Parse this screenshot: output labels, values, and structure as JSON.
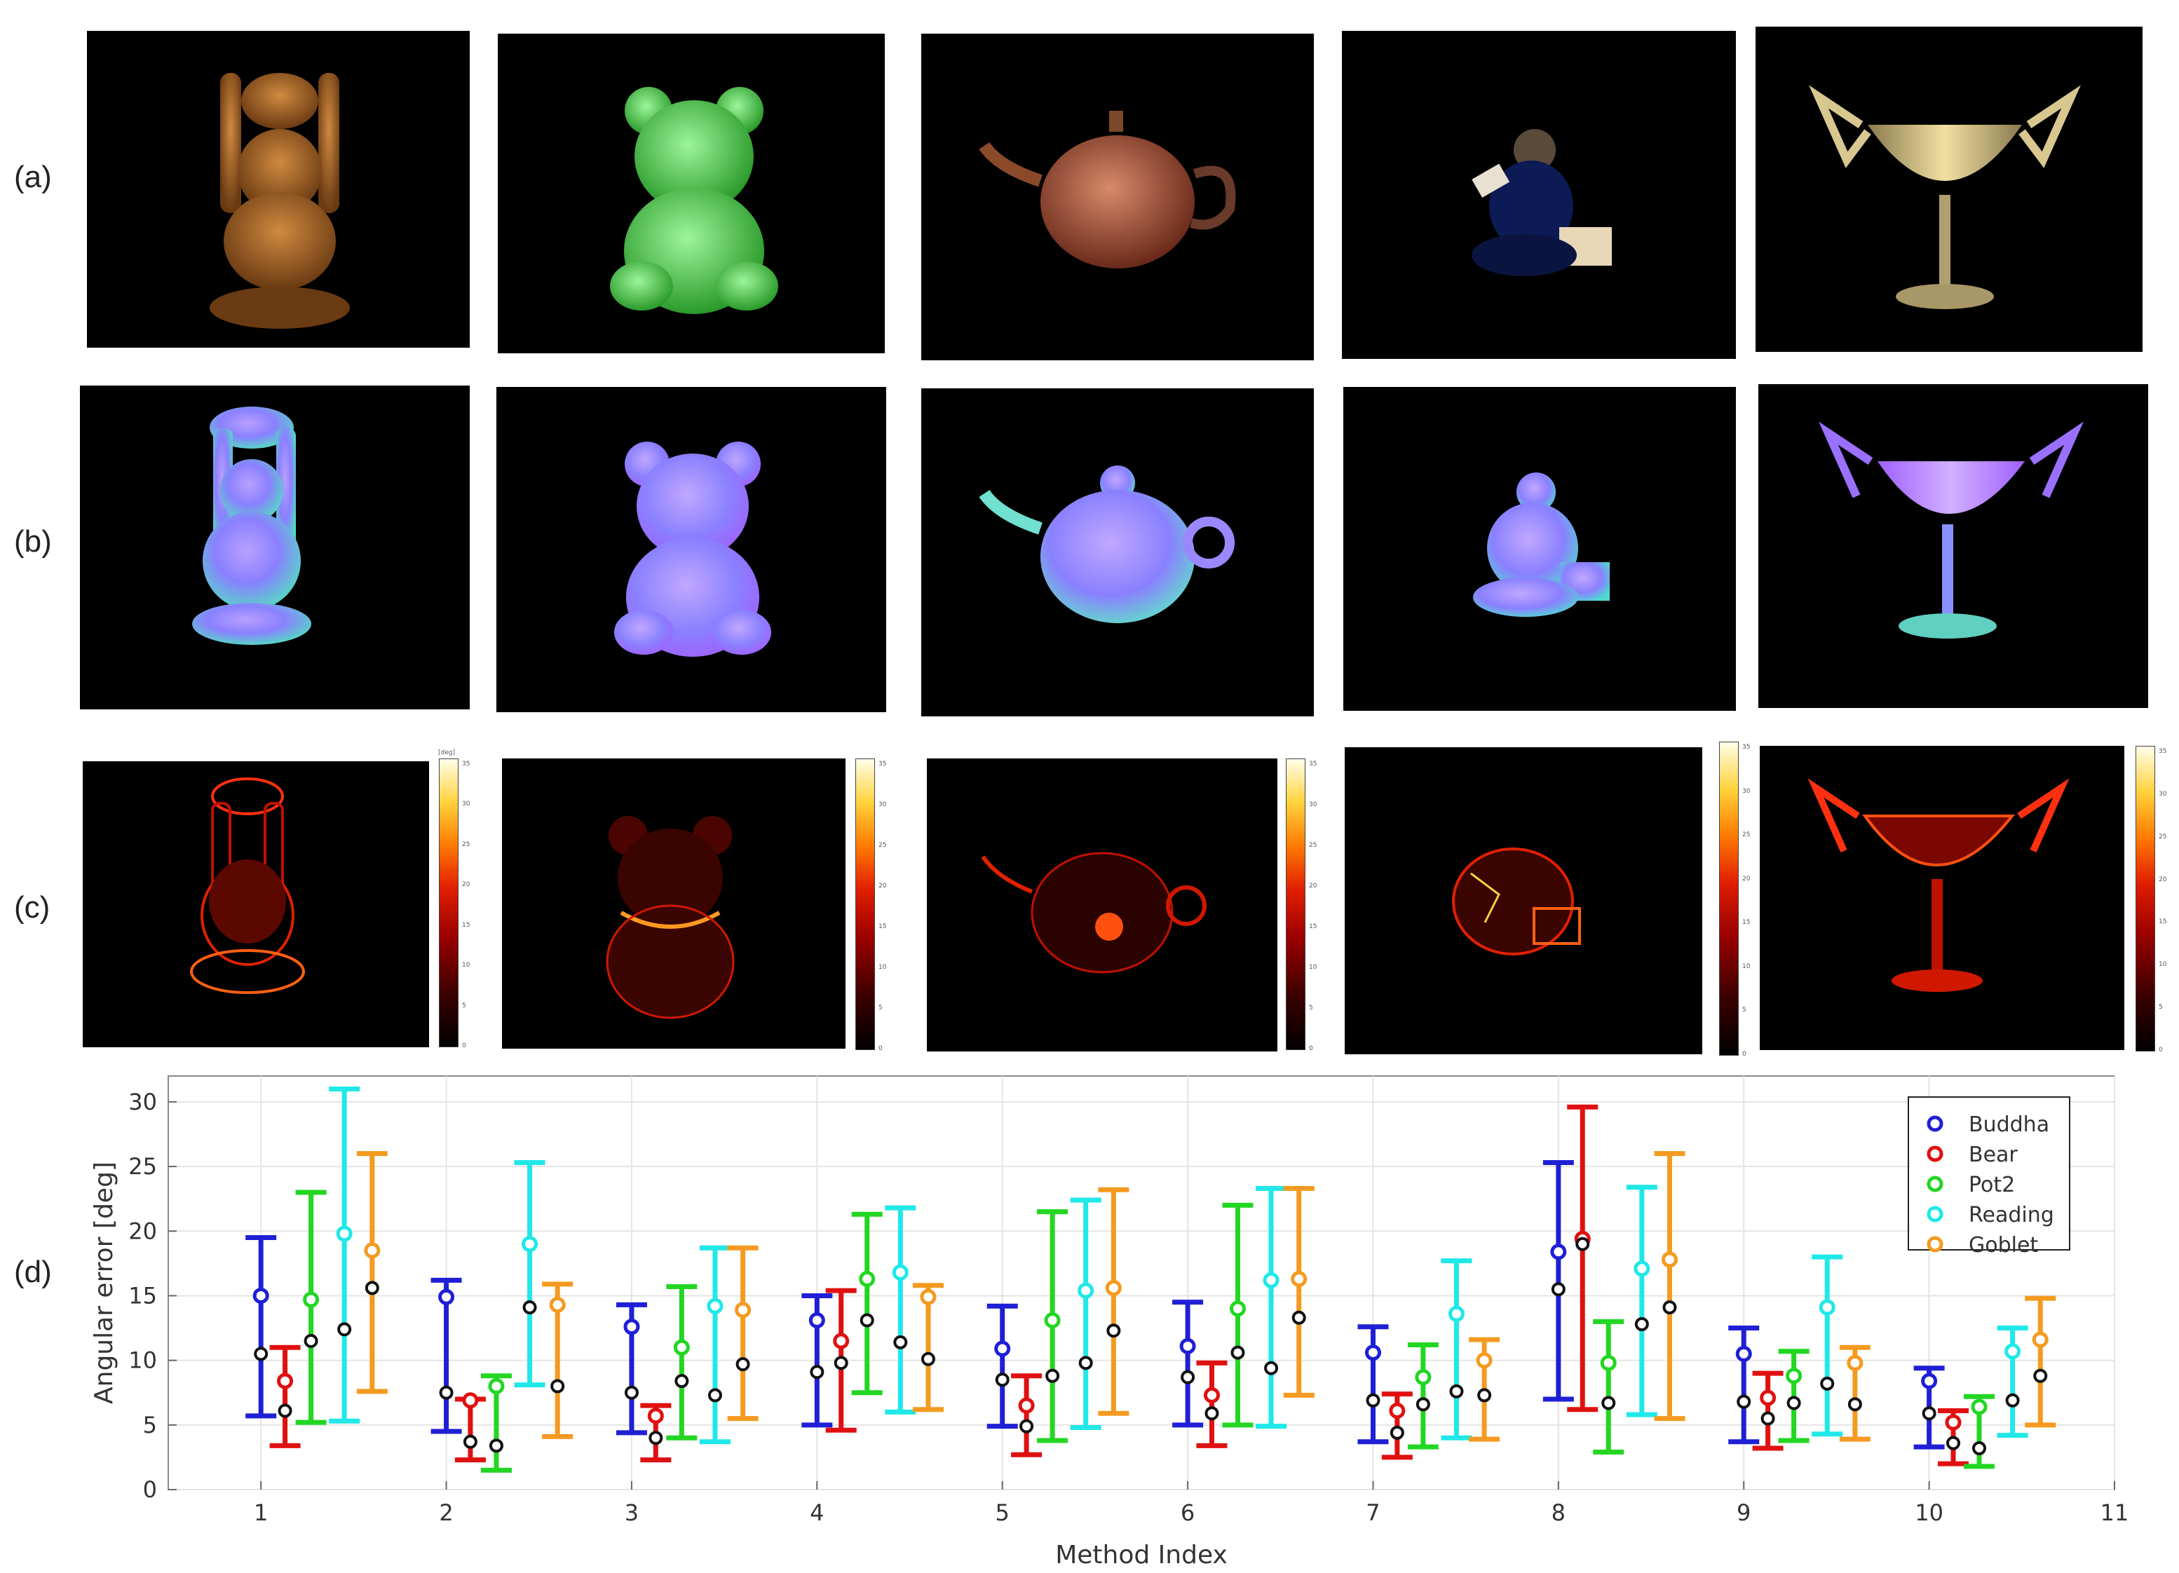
{
  "row_labels": [
    "(a)",
    "(b)",
    "(c)",
    "(d)"
  ],
  "colorbar": {
    "unit": "[deg]",
    "ticks": [
      "0",
      "5",
      "10",
      "15",
      "20",
      "25",
      "30",
      "35"
    ]
  },
  "objects": [
    "Buddha",
    "Bear",
    "Pot2",
    "Reading",
    "Goblet"
  ],
  "chart_data": {
    "type": "errorbar",
    "xlabel": "Method Index",
    "ylabel": "Angular error [deg]",
    "xlim": [
      0.5,
      11
    ],
    "ylim": [
      0,
      32
    ],
    "xticks": [
      1,
      2,
      3,
      4,
      5,
      6,
      7,
      8,
      9,
      10,
      11
    ],
    "yticks": [
      0,
      5,
      10,
      15,
      20,
      25,
      30
    ],
    "grid": true,
    "legend_position": "top-right",
    "categories": [
      1,
      2,
      3,
      4,
      5,
      6,
      7,
      8,
      9,
      10
    ],
    "series": [
      {
        "name": "Buddha",
        "color": "#1f1fd6",
        "mean": [
          15.0,
          14.9,
          12.6,
          13.1,
          10.9,
          11.1,
          10.6,
          18.4,
          10.5,
          8.4
        ],
        "median": [
          10.5,
          7.5,
          7.5,
          9.1,
          8.5,
          8.7,
          6.9,
          15.5,
          6.8,
          5.9
        ],
        "low": [
          5.7,
          4.5,
          4.4,
          5.0,
          4.9,
          5.0,
          3.7,
          7.0,
          3.7,
          3.3
        ],
        "high": [
          19.5,
          16.2,
          14.3,
          15.0,
          14.2,
          14.5,
          12.6,
          25.3,
          12.5,
          9.4
        ]
      },
      {
        "name": "Bear",
        "color": "#e01010",
        "mean": [
          8.4,
          6.9,
          5.7,
          11.5,
          6.5,
          7.3,
          6.1,
          19.4,
          7.1,
          5.2
        ],
        "median": [
          6.1,
          3.7,
          4.0,
          9.8,
          4.9,
          5.9,
          4.4,
          19.0,
          5.5,
          3.6
        ],
        "low": [
          3.4,
          2.3,
          2.3,
          4.6,
          2.7,
          3.4,
          2.5,
          6.2,
          3.2,
          2.0
        ],
        "high": [
          11.0,
          7.0,
          6.5,
          15.4,
          8.8,
          9.8,
          7.4,
          29.6,
          9.0,
          6.1
        ]
      },
      {
        "name": "Pot2",
        "color": "#22d622",
        "mean": [
          14.7,
          8.0,
          11.0,
          16.3,
          13.1,
          14.0,
          8.7,
          9.8,
          8.8,
          6.4
        ],
        "median": [
          11.5,
          3.4,
          8.4,
          13.1,
          8.8,
          10.6,
          6.6,
          6.7,
          6.7,
          3.2
        ],
        "low": [
          5.2,
          1.5,
          4.0,
          7.5,
          3.8,
          5.0,
          3.3,
          2.9,
          3.8,
          1.8
        ],
        "high": [
          23.0,
          8.8,
          15.7,
          21.3,
          21.5,
          22.0,
          11.2,
          13.0,
          10.7,
          7.2
        ]
      },
      {
        "name": "Reading",
        "color": "#20e8e8",
        "mean": [
          19.8,
          19.0,
          14.2,
          16.8,
          15.4,
          16.2,
          13.6,
          17.1,
          14.1,
          10.7
        ],
        "median": [
          12.4,
          14.1,
          7.3,
          11.4,
          9.8,
          9.4,
          7.6,
          12.8,
          8.2,
          6.9
        ],
        "low": [
          5.3,
          8.1,
          3.7,
          6.0,
          4.8,
          4.9,
          4.0,
          5.8,
          4.3,
          4.2
        ],
        "high": [
          31.0,
          25.3,
          18.7,
          21.8,
          22.4,
          23.3,
          17.7,
          23.4,
          18.0,
          12.5
        ]
      },
      {
        "name": "Goblet",
        "color": "#f59a20",
        "mean": [
          18.5,
          14.3,
          13.9,
          14.9,
          15.6,
          16.3,
          10.0,
          17.8,
          9.8,
          11.6
        ],
        "median": [
          15.6,
          8.0,
          9.7,
          10.1,
          12.3,
          13.3,
          7.3,
          14.1,
          6.6,
          8.8
        ],
        "low": [
          7.6,
          4.1,
          5.5,
          6.2,
          5.9,
          7.3,
          3.9,
          5.5,
          3.9,
          5.0
        ],
        "high": [
          26.0,
          15.9,
          18.7,
          15.8,
          23.2,
          23.3,
          11.6,
          26.0,
          11.0,
          14.8
        ]
      }
    ]
  }
}
